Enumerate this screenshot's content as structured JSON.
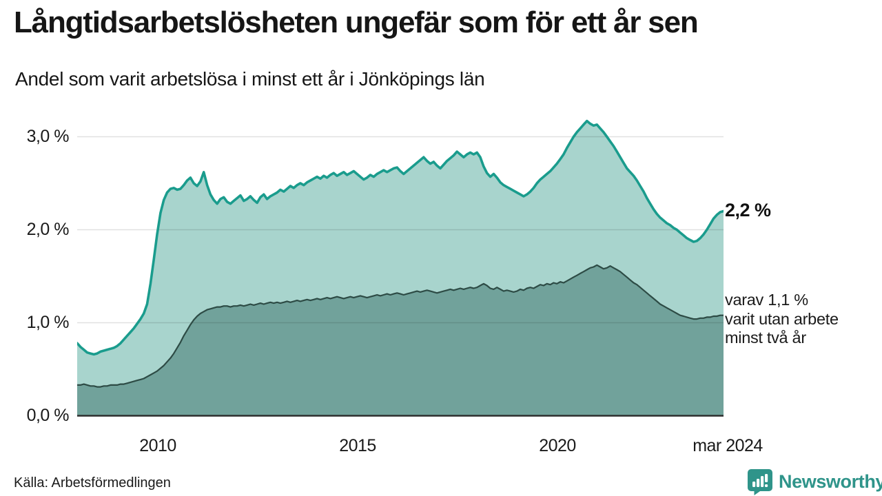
{
  "header": {
    "title": "Långtidsarbetslösheten ungefär som för ett år sen",
    "subtitle": "Andel som varit arbetslösa i minst ett år i Jönköpings län"
  },
  "footer": {
    "source": "Källa: Arbetsförmedlingen",
    "brand": "Newsworthy"
  },
  "colors": {
    "accent_line": "#1a9c8d",
    "light_fill": "#a8d4cd",
    "dark_fill": "#71a29b",
    "dark_line": "#2d4b45",
    "baseline": "#2e2e2e",
    "grid": "rgba(0,0,0,0.12)",
    "brand_teal": "#2f948a",
    "text": "#1a1a1a"
  },
  "chart_data": {
    "type": "area",
    "title": "Långtidsarbetslösheten ungefär som för ett år sen",
    "subtitle": "Andel som varit arbetslösa i minst ett år i Jönköpings län",
    "grid": true,
    "x_axis": {
      "range_years": [
        2008.0,
        2024.1667
      ],
      "tick_years": [
        2010,
        2015,
        2020,
        2024.1667
      ],
      "tick_labels": [
        "2010",
        "2015",
        "2020",
        "mar 2024"
      ]
    },
    "y_axis": {
      "unit": "%",
      "range": [
        0,
        3.28
      ],
      "tick_values": [
        0,
        1,
        2,
        3
      ],
      "tick_labels": [
        "0,0 %",
        "1,0 %",
        "2,0 %",
        "3,0 %"
      ]
    },
    "annotations": {
      "latest_value_label": "2,2 %",
      "secondary_lines": [
        "varav 1,1 %",
        "varit utan arbete",
        "minst två år"
      ]
    },
    "series": [
      {
        "name": "Arbetslösa minst ett år",
        "latest_value": 2.2,
        "start_year": 2008,
        "monthly_values": [
          0.78,
          0.74,
          0.71,
          0.68,
          0.67,
          0.66,
          0.67,
          0.69,
          0.7,
          0.71,
          0.72,
          0.73,
          0.75,
          0.78,
          0.82,
          0.86,
          0.9,
          0.94,
          0.99,
          1.04,
          1.1,
          1.2,
          1.42,
          1.68,
          1.95,
          2.18,
          2.32,
          2.4,
          2.44,
          2.45,
          2.43,
          2.44,
          2.48,
          2.53,
          2.56,
          2.5,
          2.47,
          2.52,
          2.62,
          2.48,
          2.38,
          2.32,
          2.28,
          2.33,
          2.35,
          2.3,
          2.28,
          2.31,
          2.34,
          2.37,
          2.31,
          2.33,
          2.36,
          2.32,
          2.29,
          2.35,
          2.38,
          2.33,
          2.36,
          2.38,
          2.4,
          2.43,
          2.41,
          2.44,
          2.47,
          2.45,
          2.48,
          2.5,
          2.48,
          2.51,
          2.53,
          2.55,
          2.57,
          2.55,
          2.58,
          2.56,
          2.59,
          2.61,
          2.58,
          2.6,
          2.62,
          2.59,
          2.61,
          2.63,
          2.6,
          2.57,
          2.54,
          2.56,
          2.59,
          2.57,
          2.6,
          2.62,
          2.64,
          2.62,
          2.64,
          2.66,
          2.67,
          2.63,
          2.6,
          2.63,
          2.66,
          2.69,
          2.72,
          2.75,
          2.78,
          2.74,
          2.71,
          2.73,
          2.69,
          2.66,
          2.7,
          2.74,
          2.77,
          2.8,
          2.84,
          2.81,
          2.78,
          2.81,
          2.83,
          2.81,
          2.83,
          2.78,
          2.68,
          2.61,
          2.57,
          2.6,
          2.56,
          2.51,
          2.48,
          2.46,
          2.44,
          2.42,
          2.4,
          2.38,
          2.36,
          2.38,
          2.41,
          2.45,
          2.5,
          2.54,
          2.57,
          2.6,
          2.63,
          2.67,
          2.71,
          2.76,
          2.81,
          2.88,
          2.94,
          3.0,
          3.05,
          3.09,
          3.13,
          3.17,
          3.14,
          3.12,
          3.13,
          3.09,
          3.05,
          3.0,
          2.95,
          2.9,
          2.84,
          2.78,
          2.72,
          2.66,
          2.62,
          2.58,
          2.53,
          2.47,
          2.41,
          2.34,
          2.28,
          2.22,
          2.17,
          2.13,
          2.1,
          2.07,
          2.05,
          2.02,
          2.0,
          1.97,
          1.94,
          1.91,
          1.89,
          1.87,
          1.88,
          1.91,
          1.95,
          2.0,
          2.06,
          2.12,
          2.16,
          2.19,
          2.2
        ]
      },
      {
        "name": "Arbetslösa minst två år",
        "latest_value": 1.1,
        "start_year": 2008,
        "monthly_values": [
          0.33,
          0.33,
          0.34,
          0.33,
          0.32,
          0.32,
          0.31,
          0.31,
          0.32,
          0.32,
          0.33,
          0.33,
          0.33,
          0.34,
          0.34,
          0.35,
          0.36,
          0.37,
          0.38,
          0.39,
          0.4,
          0.42,
          0.44,
          0.46,
          0.48,
          0.51,
          0.54,
          0.58,
          0.62,
          0.67,
          0.73,
          0.79,
          0.86,
          0.92,
          0.98,
          1.03,
          1.07,
          1.1,
          1.12,
          1.14,
          1.15,
          1.16,
          1.17,
          1.17,
          1.18,
          1.18,
          1.17,
          1.18,
          1.18,
          1.19,
          1.18,
          1.19,
          1.2,
          1.19,
          1.2,
          1.21,
          1.2,
          1.21,
          1.22,
          1.21,
          1.22,
          1.21,
          1.22,
          1.23,
          1.22,
          1.23,
          1.24,
          1.23,
          1.24,
          1.25,
          1.24,
          1.25,
          1.26,
          1.25,
          1.26,
          1.27,
          1.26,
          1.27,
          1.28,
          1.27,
          1.26,
          1.27,
          1.28,
          1.27,
          1.28,
          1.29,
          1.28,
          1.27,
          1.28,
          1.29,
          1.3,
          1.29,
          1.3,
          1.31,
          1.3,
          1.31,
          1.32,
          1.31,
          1.3,
          1.31,
          1.32,
          1.33,
          1.34,
          1.33,
          1.34,
          1.35,
          1.34,
          1.33,
          1.32,
          1.33,
          1.34,
          1.35,
          1.36,
          1.35,
          1.36,
          1.37,
          1.36,
          1.37,
          1.38,
          1.37,
          1.38,
          1.4,
          1.42,
          1.4,
          1.37,
          1.36,
          1.38,
          1.36,
          1.34,
          1.35,
          1.34,
          1.33,
          1.34,
          1.36,
          1.35,
          1.37,
          1.38,
          1.37,
          1.39,
          1.41,
          1.4,
          1.42,
          1.41,
          1.43,
          1.42,
          1.44,
          1.43,
          1.45,
          1.47,
          1.49,
          1.51,
          1.53,
          1.55,
          1.57,
          1.59,
          1.6,
          1.62,
          1.6,
          1.58,
          1.59,
          1.61,
          1.59,
          1.57,
          1.55,
          1.52,
          1.49,
          1.46,
          1.43,
          1.41,
          1.38,
          1.35,
          1.32,
          1.29,
          1.26,
          1.23,
          1.2,
          1.18,
          1.16,
          1.14,
          1.12,
          1.1,
          1.08,
          1.07,
          1.06,
          1.05,
          1.04,
          1.04,
          1.05,
          1.05,
          1.06,
          1.06,
          1.07,
          1.07,
          1.08,
          1.08
        ]
      }
    ]
  }
}
